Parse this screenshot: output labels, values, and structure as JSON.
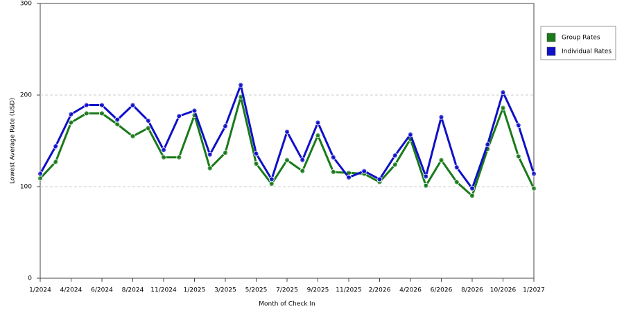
{
  "chart_data": {
    "type": "line",
    "x_label": "Month of Check In",
    "y_label": "Lowest Average Rate (USD)",
    "categories": [
      "1/2024",
      null,
      "4/2024",
      null,
      "6/2024",
      null,
      "8/2024",
      null,
      "11/2024",
      null,
      "1/2025",
      null,
      "3/2025",
      null,
      "5/2025",
      null,
      "7/2025",
      null,
      "9/2025",
      null,
      "11/2025",
      null,
      "2/2026",
      null,
      "4/2026",
      null,
      "6/2026",
      null,
      "8/2026",
      null,
      "10/2026",
      null,
      "1/2027"
    ],
    "series": [
      {
        "name": "Group Rates",
        "color": "#1a7a1a",
        "values": [
          109,
          127,
          170,
          180,
          180,
          168,
          155,
          164,
          132,
          132,
          178,
          120,
          137,
          198,
          125,
          103,
          129,
          117,
          156,
          116,
          115,
          114,
          105,
          124,
          152,
          101,
          129,
          105,
          90,
          141,
          186,
          133,
          98
        ]
      },
      {
        "name": "Individual Rates",
        "color": "#1010c8",
        "values": [
          114,
          144,
          179,
          189,
          189,
          173,
          189,
          172,
          140,
          177,
          183,
          135,
          166,
          211,
          136,
          108,
          160,
          129,
          170,
          132,
          110,
          117,
          108,
          134,
          157,
          111,
          176,
          121,
          98,
          146,
          203,
          167,
          114
        ]
      }
    ],
    "ylim": [
      0,
      300
    ],
    "yticks": [
      0,
      100,
      200,
      300
    ],
    "grid": true,
    "legend": "right"
  }
}
